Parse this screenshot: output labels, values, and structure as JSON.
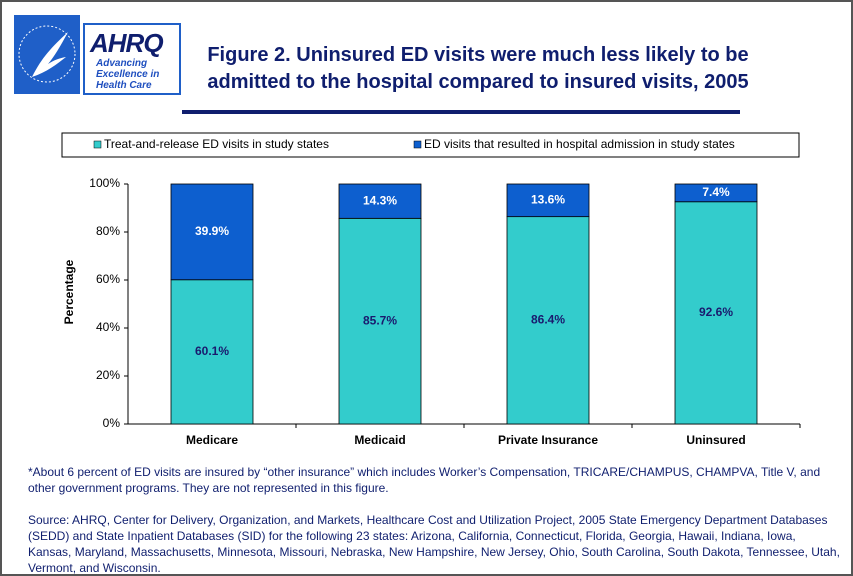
{
  "logo": {
    "name": "AHRQ",
    "tagline": [
      "Advancing",
      "Excellence in",
      "Health Care"
    ]
  },
  "chart_data": {
    "type": "stacked_bar",
    "title": "Figure 2. Uninsured ED visits were much less likely to be admitted to the hospital compared to insured visits, 2005",
    "y_label": "Percentage",
    "categories": [
      "Medicare",
      "Medicaid",
      "Private Insurance",
      "Uninsured"
    ],
    "series": [
      {
        "name": "Treat-and-release ED visits in study states",
        "color": "#33cccc",
        "values": [
          60.1,
          85.7,
          86.4,
          92.6
        ],
        "value_labels": [
          "60.1%",
          "85.7%",
          "86.4%",
          "92.6%"
        ],
        "label_color": "#1a1a6e"
      },
      {
        "name": "ED visits that resulted in hospital admission in study states",
        "color": "#0d5fcf",
        "values": [
          39.9,
          14.3,
          13.6,
          7.4
        ],
        "value_labels": [
          "39.9%",
          "14.3%",
          "13.6%",
          "7.4%"
        ],
        "label_color": "#ffffff"
      }
    ],
    "ylim": [
      0,
      100
    ],
    "yticks": [
      {
        "value": 0,
        "label": "0%"
      },
      {
        "value": 20,
        "label": "20%"
      },
      {
        "value": 40,
        "label": "40%"
      },
      {
        "value": 60,
        "label": "60%"
      },
      {
        "value": 80,
        "label": "80%"
      },
      {
        "value": 100,
        "label": "100%"
      }
    ]
  },
  "footnote": "*About 6 percent of ED visits are insured by “other insurance” which includes Worker’s Compensation, TRICARE/CHAMPUS, CHAMPVA, Title V, and other government programs. They are not represented in this figure.",
  "source": "Source: AHRQ, Center for Delivery, Organization, and Markets, Healthcare Cost and Utilization Project, 2005 State Emergency Department Databases (SEDD) and State Inpatient Databases (SID) for the following 23 states: Arizona, California, Connecticut, Florida, Georgia, Hawaii, Indiana, Iowa, Kansas, Maryland, Massachusetts, Minnesota, Missouri, Nebraska, New Hampshire, New Jersey, Ohio, South Carolina, South Dakota, Tennessee, Utah, Vermont, and Wisconsin."
}
